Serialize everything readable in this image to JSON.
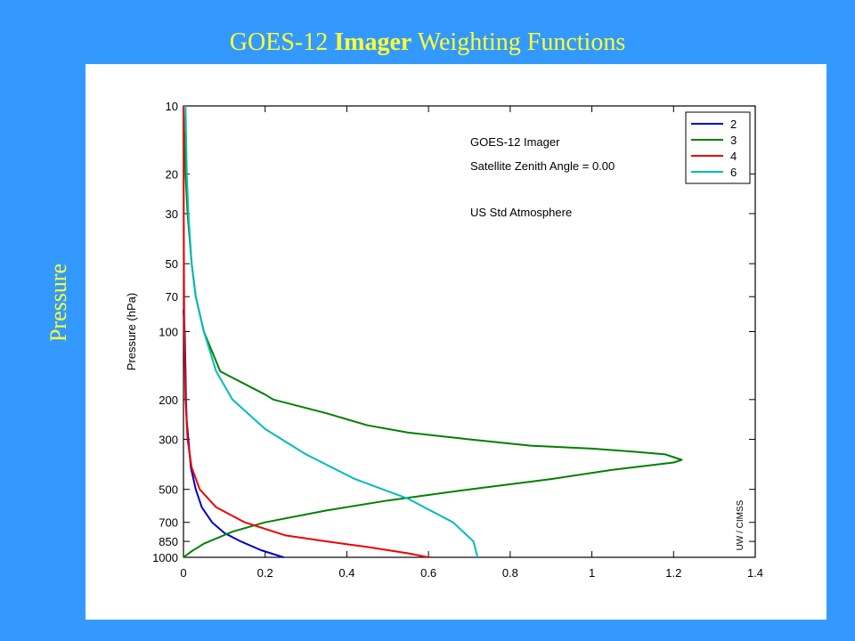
{
  "slide": {
    "title_prefix": "GOES-12 ",
    "title_bold": "Imager",
    "title_suffix": " Weighting Functions",
    "side_label": "Pressure",
    "background": "#3399FF",
    "title_color": "#FFFF33"
  },
  "chart_data": {
    "type": "line",
    "title": "",
    "xlabel": "",
    "ylabel": "Pressure (hPa)",
    "xlim": [
      0,
      1.4
    ],
    "ylim": [
      1000,
      10
    ],
    "y_scale": "log",
    "x_ticks": [
      0,
      0.2,
      0.4,
      0.6,
      0.8,
      1,
      1.2,
      1.4
    ],
    "x_tick_labels": [
      "0",
      "0.2",
      "0.4",
      "0.6",
      "0.8",
      "1",
      "1.2",
      "1.4"
    ],
    "y_ticks": [
      10,
      20,
      30,
      50,
      70,
      100,
      200,
      300,
      500,
      700,
      850,
      1000
    ],
    "y_tick_labels": [
      "10",
      "20",
      "30",
      "50",
      "70",
      "100",
      "200",
      "300",
      "500",
      "700",
      "850",
      "1000"
    ],
    "grid": false,
    "legend_position": "top-right",
    "annotations": [
      "GOES-12 Imager",
      "Satellite Zenith Angle = 0.00",
      "US Std Atmosphere"
    ],
    "credit": "UW / CIMSS",
    "series": [
      {
        "name": "2",
        "color": "#0000CC",
        "x": [
          0.0,
          0.003,
          0.005,
          0.006,
          0.008,
          0.012,
          0.018,
          0.03,
          0.045,
          0.07,
          0.1,
          0.14,
          0.19,
          0.245
        ],
        "y": [
          80,
          100,
          150,
          200,
          250,
          300,
          400,
          500,
          600,
          700,
          780,
          850,
          930,
          1000
        ]
      },
      {
        "name": "3",
        "color": "#008000",
        "x": [
          0.0,
          0.005,
          0.01,
          0.02,
          0.03,
          0.05,
          0.09,
          0.2,
          0.22,
          0.35,
          0.45,
          0.55,
          0.7,
          0.85,
          1.0,
          1.1,
          1.18,
          1.2,
          1.22,
          1.2,
          1.05,
          0.9,
          0.7,
          0.5,
          0.35,
          0.2,
          0.12,
          0.05,
          0.02,
          0.0
        ],
        "y": [
          10,
          20,
          30,
          50,
          70,
          100,
          150,
          190,
          200,
          230,
          260,
          280,
          300,
          320,
          330,
          340,
          350,
          360,
          370,
          380,
          410,
          450,
          500,
          560,
          620,
          700,
          770,
          870,
          940,
          1000
        ]
      },
      {
        "name": "4",
        "color": "#EE0000",
        "x": [
          0.0,
          0.001,
          0.002,
          0.005,
          0.01,
          0.02,
          0.04,
          0.08,
          0.15,
          0.25,
          0.35,
          0.45,
          0.55,
          0.6
        ],
        "y": [
          10,
          50,
          100,
          200,
          300,
          400,
          500,
          600,
          700,
          800,
          850,
          900,
          960,
          1000
        ]
      },
      {
        "name": "6",
        "color": "#00BBBB",
        "x": [
          0.005,
          0.008,
          0.012,
          0.02,
          0.03,
          0.05,
          0.08,
          0.12,
          0.2,
          0.3,
          0.42,
          0.55,
          0.66,
          0.71,
          0.72
        ],
        "y": [
          10,
          20,
          30,
          50,
          70,
          100,
          150,
          200,
          270,
          350,
          450,
          550,
          700,
          850,
          1000
        ]
      }
    ]
  }
}
